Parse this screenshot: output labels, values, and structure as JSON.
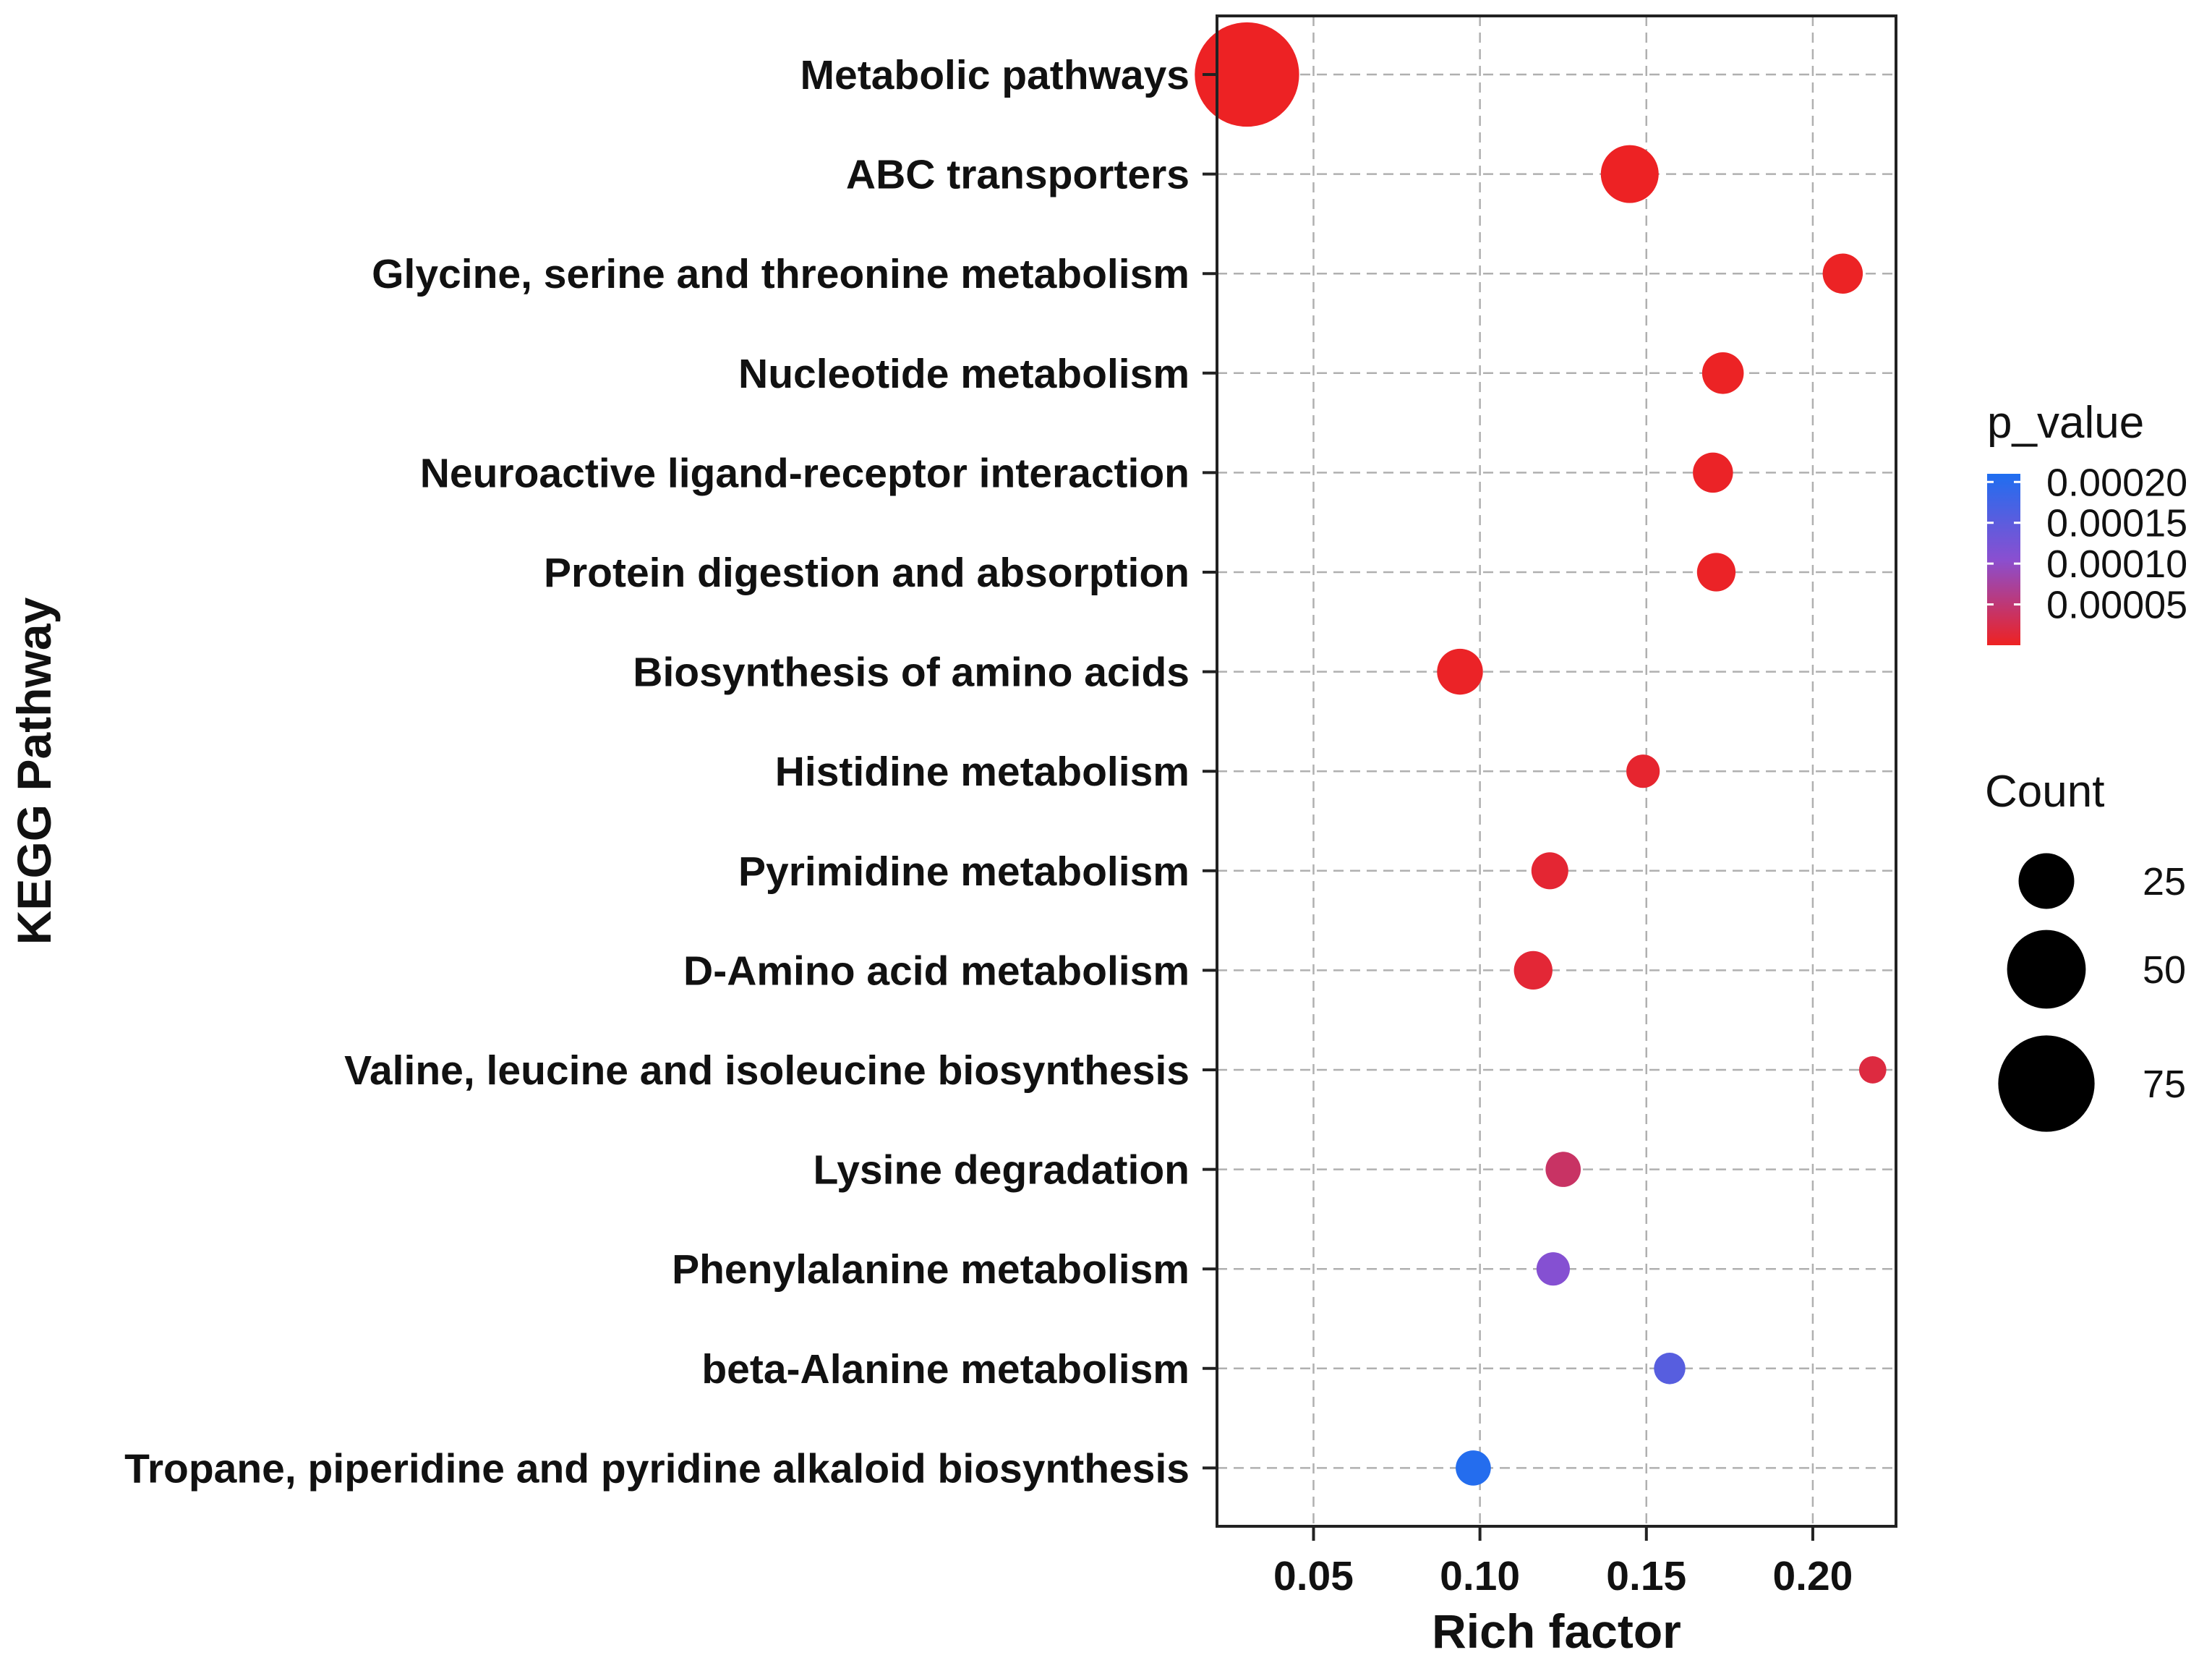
{
  "chart_data": {
    "type": "scatter",
    "title": "",
    "xlabel": "Rich factor",
    "ylabel": "KEGG Pathway",
    "xlim": [
      0.021,
      0.225
    ],
    "xticks": [
      0.05,
      0.1,
      0.15,
      0.2
    ],
    "xtick_labels": [
      "0.05",
      "0.10",
      "0.15",
      "0.20"
    ],
    "grid": true,
    "points": [
      {
        "pathway": "Metabolic pathways",
        "rich_factor": 0.03,
        "count": 88,
        "p_value": 1e-06
      },
      {
        "pathway": "ABC transporters",
        "rich_factor": 0.145,
        "count": 27,
        "p_value": 1e-06
      },
      {
        "pathway": "Glycine, serine and threonine metabolism",
        "rich_factor": 0.209,
        "count": 13,
        "p_value": 2e-06
      },
      {
        "pathway": "Nucleotide metabolism",
        "rich_factor": 0.173,
        "count": 14,
        "p_value": 2e-06
      },
      {
        "pathway": "Neuroactive ligand-receptor interaction",
        "rich_factor": 0.17,
        "count": 13,
        "p_value": 3e-06
      },
      {
        "pathway": "Protein digestion and absorption",
        "rich_factor": 0.171,
        "count": 12,
        "p_value": 3e-06
      },
      {
        "pathway": "Biosynthesis of amino acids",
        "rich_factor": 0.094,
        "count": 17,
        "p_value": 3e-06
      },
      {
        "pathway": "Histidine metabolism",
        "rich_factor": 0.149,
        "count": 9,
        "p_value": 8e-06
      },
      {
        "pathway": "Pyrimidine metabolism",
        "rich_factor": 0.121,
        "count": 11,
        "p_value": 1e-05
      },
      {
        "pathway": "D-Amino acid metabolism",
        "rich_factor": 0.116,
        "count": 12,
        "p_value": 1.2e-05
      },
      {
        "pathway": "Valine, leucine and isoleucine biosynthesis",
        "rich_factor": 0.218,
        "count": 6,
        "p_value": 1.8e-05
      },
      {
        "pathway": "Lysine degradation",
        "rich_factor": 0.125,
        "count": 10,
        "p_value": 4e-05
      },
      {
        "pathway": "Phenylalanine metabolism",
        "rich_factor": 0.122,
        "count": 9,
        "p_value": 0.00011
      },
      {
        "pathway": "beta-Alanine metabolism",
        "rich_factor": 0.157,
        "count": 8,
        "p_value": 0.000155
      },
      {
        "pathway": "Tropane, piperidine and pyridine alkaloid biosynthesis",
        "rich_factor": 0.098,
        "count": 10,
        "p_value": 0.000205
      }
    ],
    "color_legend": {
      "title": "p_value",
      "min": 0,
      "max": 0.00021,
      "low_color": "#ee2222",
      "mid_color": "#8a4fd0",
      "high_color": "#1f6ef0",
      "breaks": [
        5e-05,
        0.0001,
        0.00015,
        0.0002
      ],
      "break_labels": [
        "0.00005",
        "0.00010",
        "0.00015",
        "0.00020"
      ]
    },
    "size_legend": {
      "title": "Count",
      "values": [
        25,
        50,
        75
      ],
      "labels": [
        "25",
        "50",
        "75"
      ],
      "size_domain": [
        0,
        90
      ]
    },
    "legend_position": "right"
  }
}
